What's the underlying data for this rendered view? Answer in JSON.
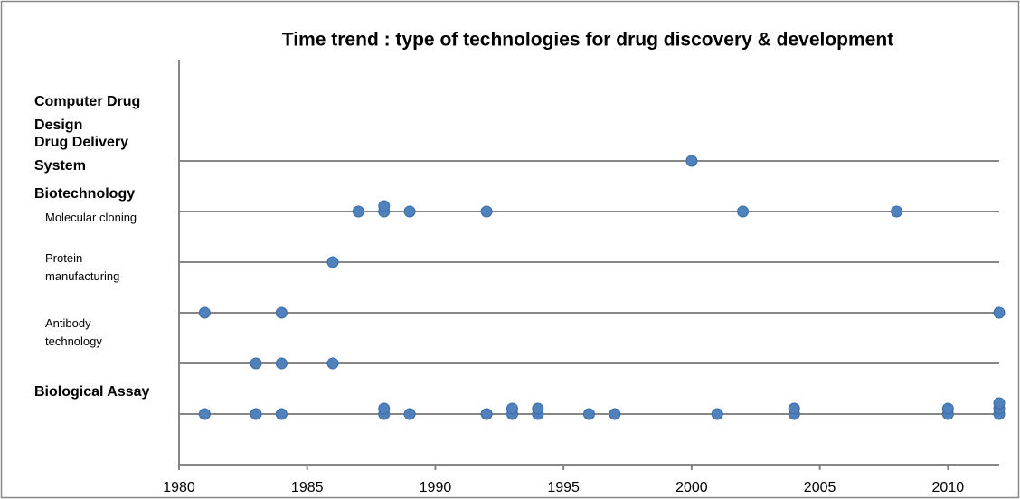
{
  "chart_data": {
    "type": "dot",
    "title": "Time trend : type of technologies for drug discovery & development",
    "group_label": "Biotechnology",
    "series": [
      {
        "name": "Biological Assay",
        "color": "#4f81bd",
        "values": [
          1981,
          1983,
          1984,
          1988,
          1988,
          1989,
          1992,
          1993,
          1993,
          1994,
          1994,
          1996,
          1997,
          2001,
          2004,
          2004,
          2010,
          2010,
          2012,
          2012,
          2012
        ]
      },
      {
        "name": "Antibody technology",
        "color": "#4f81bd",
        "values": [
          1983,
          1984,
          1986
        ]
      },
      {
        "name": "Protein manufacturing",
        "color": "#4f81bd",
        "values": [
          1981,
          1984,
          2012
        ]
      },
      {
        "name": "Molecular cloning",
        "color": "#4f81bd",
        "values": [
          1986
        ]
      },
      {
        "name": "Drug Delivery System",
        "color": "#4f81bd",
        "values": [
          1987,
          1988,
          1988,
          1989,
          1992,
          2002,
          2008
        ]
      },
      {
        "name": "Computer Drug Design",
        "color": "#4f81bd",
        "values": [
          2000
        ]
      }
    ],
    "xlim": [
      1980,
      2012
    ],
    "xticks": [
      1980,
      1985,
      1990,
      1995,
      2000,
      2005,
      2010
    ]
  }
}
